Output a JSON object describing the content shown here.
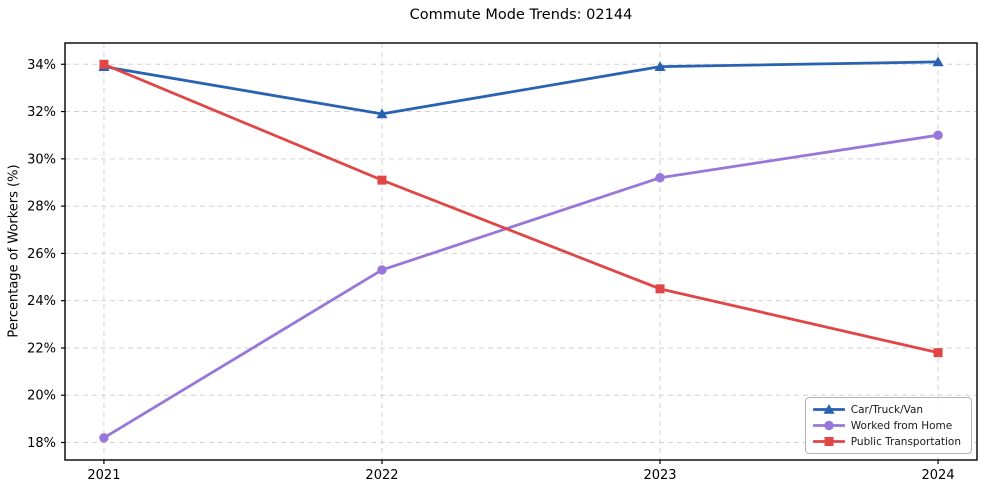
{
  "chart_data": {
    "type": "line",
    "title": "Commute Mode Trends: 02144",
    "xlabel": "",
    "ylabel": "Percentage of Workers (%)",
    "x": [
      2021,
      2022,
      2023,
      2024
    ],
    "x_labels": [
      "2021",
      "2022",
      "2023",
      "2024"
    ],
    "series": [
      {
        "name": "Car/Truck/Van",
        "marker": "triangle",
        "color": "#2a62b2",
        "values": [
          33.9,
          31.9,
          33.9,
          34.1
        ]
      },
      {
        "name": "Worked from Home",
        "marker": "circle",
        "color": "#9777d9",
        "values": [
          18.2,
          25.3,
          29.2,
          31.0
        ]
      },
      {
        "name": "Public Transportation",
        "marker": "square",
        "color": "#e04646",
        "values": [
          34.0,
          29.1,
          24.5,
          21.8
        ]
      }
    ],
    "yticks": [
      18,
      20,
      22,
      24,
      26,
      28,
      30,
      32,
      34
    ],
    "ytick_labels": [
      "18%",
      "20%",
      "22%",
      "24%",
      "26%",
      "28%",
      "30%",
      "32%",
      "34%"
    ],
    "ylim": [
      17.26,
      34.9
    ],
    "xlim": [
      2020.86,
      2024.14
    ],
    "grid": true,
    "grid_style": "dashed",
    "legend_position": "lower right",
    "colors": {
      "grid": "#d2d2d2",
      "spine": "#000000",
      "background": "#ffffff",
      "text": "#000000"
    }
  }
}
